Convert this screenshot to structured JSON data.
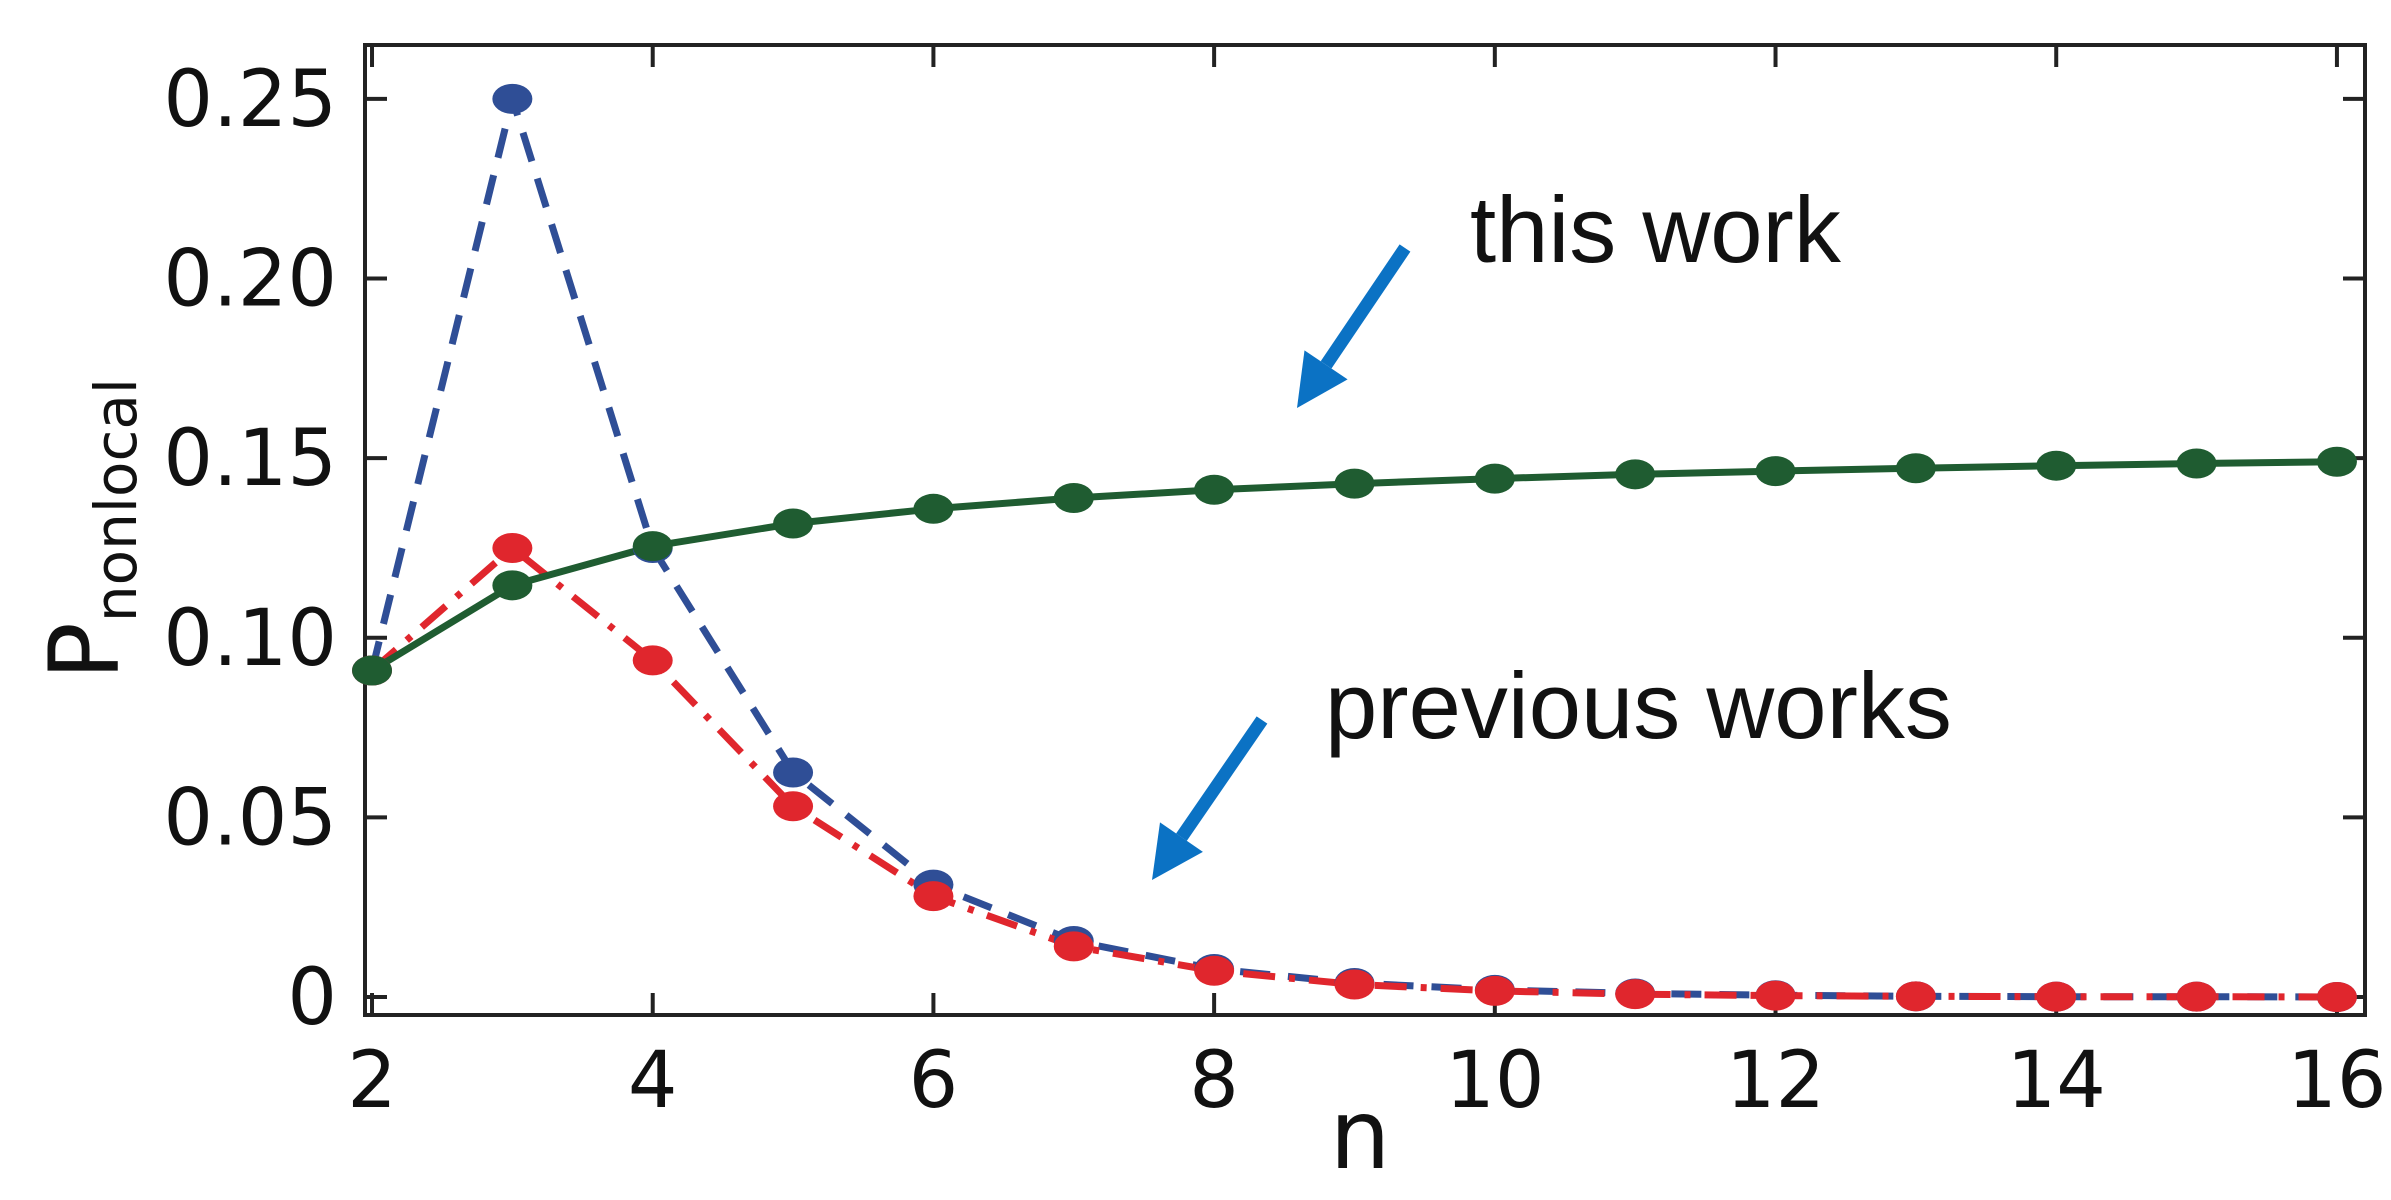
{
  "chart_data": {
    "type": "line",
    "title": "",
    "xlabel": "n",
    "ylabel_main": "P",
    "ylabel_sub": "nonlocal",
    "xlim": [
      1.95,
      16.2
    ],
    "ylim": [
      -0.005,
      0.265
    ],
    "x_ticks": [
      2,
      4,
      6,
      8,
      10,
      12,
      14,
      16
    ],
    "x_tick_labels": [
      "2",
      "4",
      "6",
      "8",
      "10",
      "12",
      "14",
      "16"
    ],
    "y_ticks": [
      0,
      0.05,
      0.1,
      0.15,
      0.2,
      0.25
    ],
    "y_tick_labels": [
      "0",
      "0.05",
      "0.10",
      "0.15",
      "0.20",
      "0.25"
    ],
    "grid": false,
    "x": [
      2,
      3,
      4,
      5,
      6,
      7,
      8,
      9,
      10,
      11,
      12,
      13,
      14,
      15,
      16
    ],
    "series": [
      {
        "color": "#2f4e96",
        "style": "dashed",
        "values": [
          0.0909,
          0.25,
          0.125,
          0.0625,
          0.0313,
          0.0156,
          0.0078,
          0.0039,
          0.002,
          0.001,
          0.0005,
          0.0002,
          0.0001,
          0.0001,
          0.0
        ]
      },
      {
        "color": "#e0262d",
        "style": "dashdot",
        "values": [
          0.0909,
          0.125,
          0.0937,
          0.0531,
          0.0281,
          0.0141,
          0.0073,
          0.0035,
          0.0017,
          0.0008,
          0.0004,
          0.0002,
          0.0001,
          0.0001,
          0.0
        ]
      },
      {
        "color": "#1f5c31",
        "style": "solid",
        "values": [
          0.0909,
          0.1146,
          0.1255,
          0.1318,
          0.1359,
          0.1389,
          0.1412,
          0.1429,
          0.1443,
          0.1455,
          0.1464,
          0.1472,
          0.1479,
          0.1485,
          0.149
        ]
      }
    ],
    "annotations": [
      {
        "text": "this work",
        "color": "#0b72c4"
      },
      {
        "text": "previous works",
        "color": "#0b72c4"
      }
    ]
  }
}
